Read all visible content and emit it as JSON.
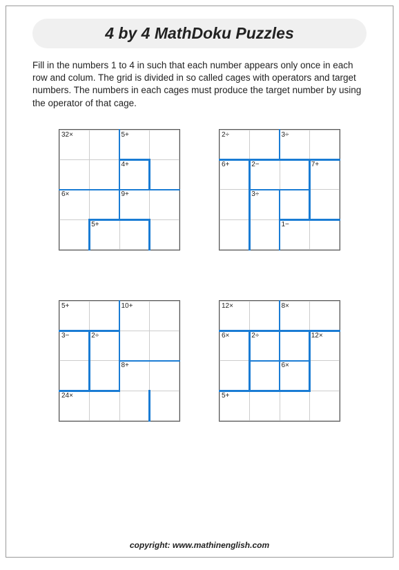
{
  "title": "4 by 4 MathDoku Puzzles",
  "instructions": "Fill in the numbers 1 to 4 in such that each number appears only once in each row and colum. The grid is divided in so called cages with operators and target numbers. The numbers in each cages must produce the target number by using the operator of that cage.",
  "copyright": "copyright:    www.mathinenglish.com",
  "cage_border_color": "#1a7cd4",
  "grid_border_color": "#555555",
  "cell_border_color": "#cccccc",
  "cage_border_width": 2.5,
  "cell_size": 44,
  "grid_size": 4,
  "puzzles": [
    {
      "labels": [
        {
          "r": 0,
          "c": 0,
          "t": "32×"
        },
        {
          "r": 0,
          "c": 2,
          "t": "5+"
        },
        {
          "r": 1,
          "c": 2,
          "t": "4+"
        },
        {
          "r": 2,
          "c": 0,
          "t": "6×"
        },
        {
          "r": 2,
          "c": 2,
          "t": "9+"
        },
        {
          "r": 3,
          "c": 1,
          "t": "5+"
        }
      ],
      "cage_edges": [
        {
          "type": "v",
          "r": 0,
          "c": 2,
          "len": 2
        },
        {
          "type": "h",
          "r": 1,
          "c": 2,
          "len": 1
        },
        {
          "type": "v",
          "r": 1,
          "c": 3,
          "len": 1
        },
        {
          "type": "h",
          "r": 2,
          "c": 0,
          "len": 2
        },
        {
          "type": "h",
          "r": 2,
          "c": 2,
          "len": 2
        },
        {
          "type": "v",
          "r": 2,
          "c": 2,
          "len": 1
        },
        {
          "type": "v",
          "r": 3,
          "c": 1,
          "len": 1
        },
        {
          "type": "h",
          "r": 3,
          "c": 1,
          "len": 2
        },
        {
          "type": "v",
          "r": 3,
          "c": 3,
          "len": 1
        }
      ]
    },
    {
      "labels": [
        {
          "r": 0,
          "c": 0,
          "t": "2÷"
        },
        {
          "r": 0,
          "c": 2,
          "t": "3÷"
        },
        {
          "r": 1,
          "c": 0,
          "t": "6+"
        },
        {
          "r": 1,
          "c": 1,
          "t": "2−"
        },
        {
          "r": 1,
          "c": 3,
          "t": "7+"
        },
        {
          "r": 2,
          "c": 1,
          "t": "3÷"
        },
        {
          "r": 3,
          "c": 2,
          "t": "1−"
        }
      ],
      "cage_edges": [
        {
          "type": "v",
          "r": 0,
          "c": 2,
          "len": 1
        },
        {
          "type": "h",
          "r": 1,
          "c": 0,
          "len": 4
        },
        {
          "type": "v",
          "r": 1,
          "c": 1,
          "len": 3
        },
        {
          "type": "v",
          "r": 1,
          "c": 3,
          "len": 2
        },
        {
          "type": "h",
          "r": 2,
          "c": 1,
          "len": 2
        },
        {
          "type": "v",
          "r": 2,
          "c": 2,
          "len": 1
        },
        {
          "type": "h",
          "r": 3,
          "c": 2,
          "len": 2
        },
        {
          "type": "v",
          "r": 3,
          "c": 2,
          "len": 1
        }
      ]
    },
    {
      "labels": [
        {
          "r": 0,
          "c": 0,
          "t": "5+"
        },
        {
          "r": 0,
          "c": 2,
          "t": "10+"
        },
        {
          "r": 1,
          "c": 0,
          "t": "3−"
        },
        {
          "r": 1,
          "c": 1,
          "t": "2÷"
        },
        {
          "r": 2,
          "c": 2,
          "t": "8+"
        },
        {
          "r": 3,
          "c": 0,
          "t": "24×"
        }
      ],
      "cage_edges": [
        {
          "type": "v",
          "r": 0,
          "c": 2,
          "len": 3
        },
        {
          "type": "h",
          "r": 1,
          "c": 0,
          "len": 2
        },
        {
          "type": "v",
          "r": 1,
          "c": 1,
          "len": 2
        },
        {
          "type": "h",
          "r": 2,
          "c": 2,
          "len": 2
        },
        {
          "type": "h",
          "r": 3,
          "c": 0,
          "len": 2
        },
        {
          "type": "v",
          "r": 3,
          "c": 3,
          "len": 1
        }
      ]
    },
    {
      "labels": [
        {
          "r": 0,
          "c": 0,
          "t": "12×"
        },
        {
          "r": 0,
          "c": 2,
          "t": "8×"
        },
        {
          "r": 1,
          "c": 0,
          "t": "6×"
        },
        {
          "r": 1,
          "c": 1,
          "t": "2÷"
        },
        {
          "r": 1,
          "c": 3,
          "t": "12×"
        },
        {
          "r": 2,
          "c": 2,
          "t": "6×"
        },
        {
          "r": 3,
          "c": 0,
          "t": "5+"
        }
      ],
      "cage_edges": [
        {
          "type": "v",
          "r": 0,
          "c": 2,
          "len": 1
        },
        {
          "type": "h",
          "r": 1,
          "c": 0,
          "len": 4
        },
        {
          "type": "v",
          "r": 1,
          "c": 1,
          "len": 2
        },
        {
          "type": "v",
          "r": 1,
          "c": 2,
          "len": 1
        },
        {
          "type": "v",
          "r": 1,
          "c": 3,
          "len": 2
        },
        {
          "type": "h",
          "r": 2,
          "c": 1,
          "len": 2
        },
        {
          "type": "v",
          "r": 2,
          "c": 2,
          "len": 1
        },
        {
          "type": "h",
          "r": 3,
          "c": 0,
          "len": 3
        }
      ]
    }
  ]
}
